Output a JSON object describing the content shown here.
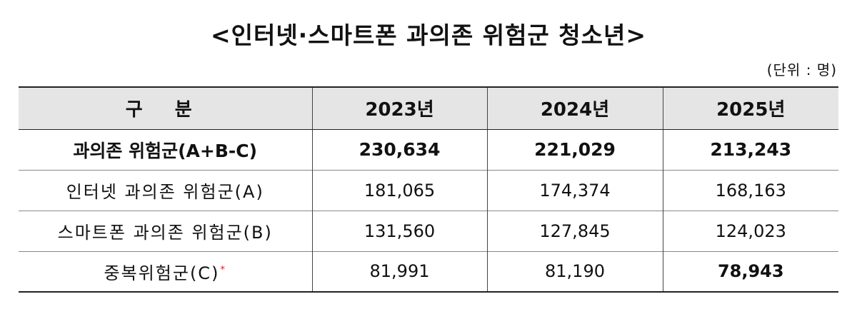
{
  "title": "<인터넷·스마트폰 과의존 위험군 청소년>",
  "unit": "(단위 : 명)",
  "table": {
    "headers": [
      "구 분",
      "2023년",
      "2024년",
      "2025년"
    ],
    "rows": [
      {
        "label": "과의존 위험군(A+B-C)",
        "values": [
          "230,634",
          "221,029",
          "213,243"
        ]
      },
      {
        "label": "인터넷 과의존 위험군(A)",
        "values": [
          "181,065",
          "174,374",
          "168,163"
        ]
      },
      {
        "label": "스마트폰 과의존 위험군(B)",
        "values": [
          "131,560",
          "127,845",
          "124,023"
        ]
      },
      {
        "label": "중복위험군(C)",
        "note": "*",
        "values": [
          "81,991",
          "81,190",
          "78,943"
        ]
      }
    ]
  },
  "colors": {
    "header_bg": "#e5e5e5",
    "note_mark": "#d0201a"
  }
}
